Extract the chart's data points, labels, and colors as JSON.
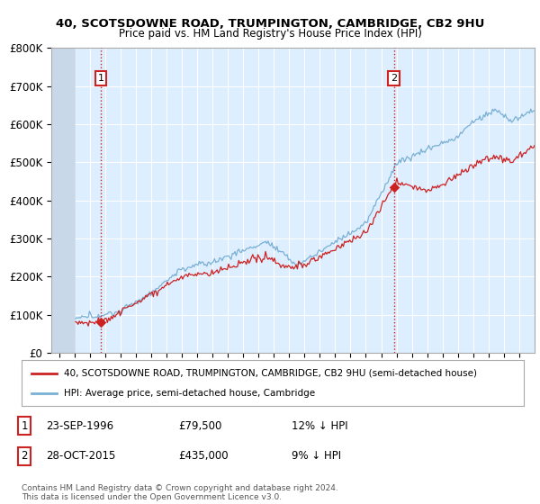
{
  "title_line1": "40, SCOTSDOWNE ROAD, TRUMPINGTON, CAMBRIDGE, CB2 9HU",
  "title_line2": "Price paid vs. HM Land Registry's House Price Index (HPI)",
  "ylim": [
    0,
    800000
  ],
  "yticks": [
    0,
    100000,
    200000,
    300000,
    400000,
    500000,
    600000,
    700000,
    800000
  ],
  "ytick_labels": [
    "£0",
    "£100K",
    "£200K",
    "£300K",
    "£400K",
    "£500K",
    "£600K",
    "£700K",
    "£800K"
  ],
  "hpi_color": "#7ab0d4",
  "property_color": "#cc2222",
  "annotation_color": "#cc2222",
  "vline_color": "#cc2222",
  "background_color": "#ffffff",
  "plot_bg_color": "#ddeeff",
  "hatched_region_color": "#c8d8e8",
  "grid_color": "#ffffff",
  "legend_label_property": "40, SCOTSDOWNE ROAD, TRUMPINGTON, CAMBRIDGE, CB2 9HU (semi-detached house)",
  "legend_label_hpi": "HPI: Average price, semi-detached house, Cambridge",
  "transaction1_label": "1",
  "transaction1_date": "23-SEP-1996",
  "transaction1_price": "£79,500",
  "transaction1_hpi": "12% ↓ HPI",
  "transaction1_year": 1996.72,
  "transaction1_value": 79500,
  "transaction2_label": "2",
  "transaction2_date": "28-OCT-2015",
  "transaction2_price": "£435,000",
  "transaction2_hpi": "9% ↓ HPI",
  "transaction2_year": 2015.83,
  "transaction2_value": 435000,
  "footer": "Contains HM Land Registry data © Crown copyright and database right 2024.\nThis data is licensed under the Open Government Licence v3.0.",
  "xlim_start": 1993.5,
  "xlim_end": 2025.0,
  "hatch_end": 1995.0
}
